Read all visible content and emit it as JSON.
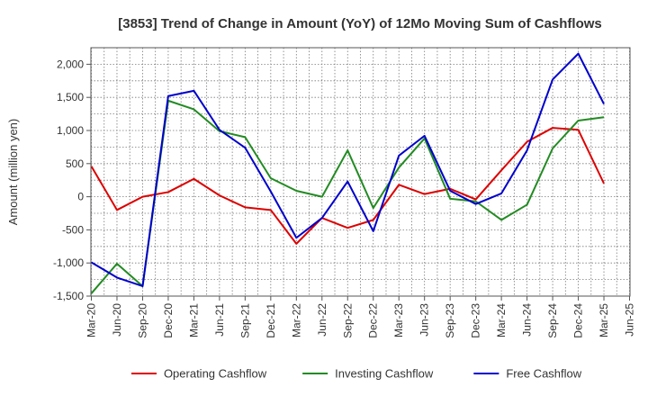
{
  "chart_data": {
    "type": "line",
    "title": "[3853]  Trend of Change in Amount (YoY) of 12Mo Moving Sum of Cashflows",
    "xlabel": "",
    "ylabel": "Amount (million yen)",
    "ylim": [
      -1500,
      2250
    ],
    "yticks": [
      -1500,
      -1000,
      -500,
      0,
      500,
      1000,
      1500,
      2000
    ],
    "ytick_labels": [
      "-1,500",
      "-1,000",
      "-500",
      "0",
      "500",
      "1,000",
      "1,500",
      "2,000"
    ],
    "grid": true,
    "legend_position": "bottom",
    "categories": [
      "Mar-20",
      "Jun-20",
      "Sep-20",
      "Dec-20",
      "Mar-21",
      "Jun-21",
      "Sep-21",
      "Dec-21",
      "Mar-22",
      "Jun-22",
      "Sep-22",
      "Dec-22",
      "Mar-23",
      "Jun-23",
      "Sep-23",
      "Dec-23",
      "Mar-24",
      "Jun-24",
      "Sep-24",
      "Dec-24",
      "Mar-25",
      "Jun-25"
    ],
    "series": [
      {
        "name": "Operating Cashflow",
        "color": "#dd0000",
        "values": [
          460,
          -200,
          0,
          70,
          270,
          20,
          -160,
          -200,
          -710,
          -320,
          -470,
          -350,
          180,
          40,
          120,
          -40,
          400,
          830,
          1040,
          1010,
          200,
          null
        ]
      },
      {
        "name": "Investing Cashflow",
        "color": "#228b22",
        "values": [
          -1460,
          -1010,
          -1350,
          1450,
          1320,
          990,
          900,
          280,
          90,
          0,
          700,
          -170,
          440,
          880,
          -30,
          -70,
          -350,
          -120,
          730,
          1150,
          1200,
          null
        ]
      },
      {
        "name": "Free Cashflow",
        "color": "#0000cc",
        "values": [
          -990,
          -1220,
          -1350,
          1520,
          1600,
          1010,
          740,
          80,
          -620,
          -320,
          230,
          -520,
          620,
          920,
          90,
          -110,
          50,
          700,
          1770,
          2160,
          1400,
          null
        ]
      }
    ]
  }
}
